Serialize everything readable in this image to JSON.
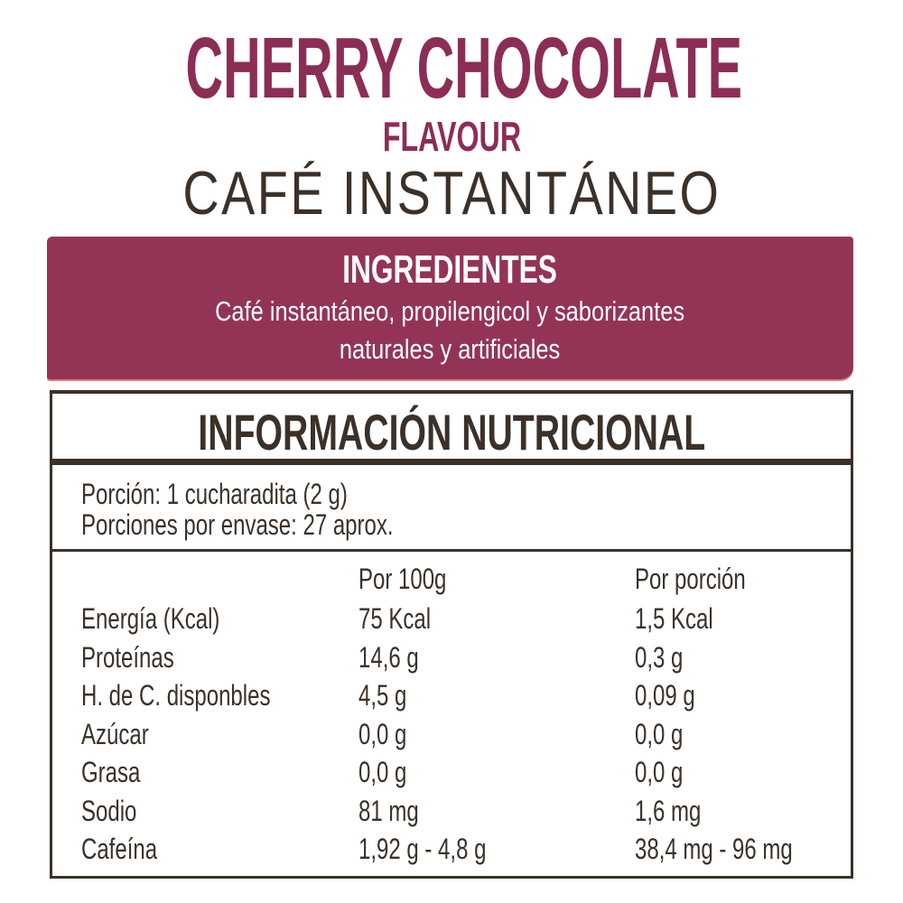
{
  "header": {
    "title": "CHERRY CHOCOLATE",
    "flavour": "FLAVOUR",
    "product_type": "CAFÉ INSTANTÁNEO"
  },
  "ingredients": {
    "title": "INGREDIENTES",
    "lines": [
      "Café instantáneo, propilengicol y saborizantes",
      "naturales y artificiales"
    ]
  },
  "nutrition": {
    "title": "INFORMACIÓN NUTRICIONAL",
    "serving": "Porción: 1 cucharadita (2 g)",
    "servings_per_container": "Porciones por envase:  27 aprox.",
    "columns": [
      "",
      "Por 100g",
      "Por porción"
    ],
    "rows": [
      [
        "Energía (Kcal)",
        "75 Kcal",
        "1,5 Kcal"
      ],
      [
        "Proteínas",
        "14,6 g",
        "0,3 g"
      ],
      [
        "H. de C. disponbles",
        "4,5 g",
        "0,09 g"
      ],
      [
        "Azúcar",
        "0,0 g",
        "0,0 g"
      ],
      [
        "Grasa",
        "0,0 g",
        "0,0 g"
      ],
      [
        "Sodio",
        "81 mg",
        "1,6 mg"
      ],
      [
        "Cafeína",
        "1,92 g - 4,8 g",
        "38,4 mg - 96 mg"
      ]
    ]
  },
  "colors": {
    "brand": "#8c2d56",
    "banner": "#933457",
    "text": "#3b3129"
  }
}
